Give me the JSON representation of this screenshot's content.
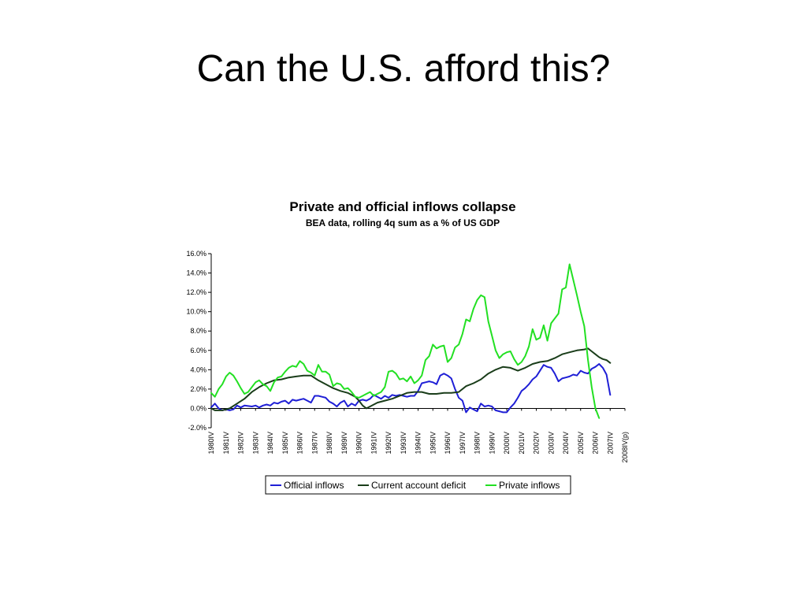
{
  "slide": {
    "title": "Can the U.S. afford this?"
  },
  "chart_data": {
    "type": "line",
    "title": "Private and official inflows collapse",
    "subtitle": "BEA data, rolling 4q sum as a % of US GDP",
    "xlabel": "",
    "ylabel": "",
    "ylim": [
      -2.0,
      16.0
    ],
    "yticks": [
      "-2.0%",
      "0.0%",
      "2.0%",
      "4.0%",
      "6.0%",
      "8.0%",
      "10.0%",
      "12.0%",
      "14.0%",
      "16.0%"
    ],
    "x_start": 1980.75,
    "x_end": 2008.75,
    "x_labels": [
      "1980IV",
      "1981IV",
      "1982IV",
      "1983IV",
      "1984IV",
      "1985IV",
      "1986IV",
      "1987IV",
      "1988IV",
      "1989IV",
      "1990IV",
      "1991IV",
      "1992IV",
      "1993IV",
      "1994IV",
      "1995IV",
      "1996IV",
      "1997IV",
      "1998IV",
      "1999IV",
      "2000IV",
      "2001IV",
      "2002IV",
      "2003IV",
      "2004IV",
      "2005IV",
      "2006IV",
      "2007IV",
      "2008IV(p)"
    ],
    "legend_position": "bottom",
    "grid": false,
    "series": [
      {
        "name": "Official inflows",
        "color": "#1f1fd6",
        "points": [
          [
            1980.75,
            0.1
          ],
          [
            1981.0,
            0.5
          ],
          [
            1981.25,
            0.0
          ],
          [
            1981.5,
            -0.2
          ],
          [
            1981.75,
            -0.1
          ],
          [
            1982.0,
            -0.2
          ],
          [
            1982.25,
            -0.1
          ],
          [
            1982.5,
            0.3
          ],
          [
            1982.75,
            0.1
          ],
          [
            1983.0,
            0.3
          ],
          [
            1983.5,
            0.2
          ],
          [
            1983.75,
            0.3
          ],
          [
            1984.0,
            0.1
          ],
          [
            1984.25,
            0.3
          ],
          [
            1984.5,
            0.4
          ],
          [
            1984.75,
            0.3
          ],
          [
            1985.0,
            0.6
          ],
          [
            1985.25,
            0.5
          ],
          [
            1985.5,
            0.7
          ],
          [
            1985.75,
            0.8
          ],
          [
            1986.0,
            0.5
          ],
          [
            1986.25,
            0.9
          ],
          [
            1986.5,
            0.8
          ],
          [
            1986.75,
            0.9
          ],
          [
            1987.0,
            1.0
          ],
          [
            1987.25,
            0.8
          ],
          [
            1987.5,
            0.6
          ],
          [
            1987.75,
            1.3
          ],
          [
            1988.0,
            1.3
          ],
          [
            1988.25,
            1.2
          ],
          [
            1988.5,
            1.1
          ],
          [
            1988.75,
            0.7
          ],
          [
            1989.0,
            0.5
          ],
          [
            1989.25,
            0.2
          ],
          [
            1989.5,
            0.6
          ],
          [
            1989.75,
            0.8
          ],
          [
            1990.0,
            0.2
          ],
          [
            1990.25,
            0.5
          ],
          [
            1990.5,
            0.3
          ],
          [
            1990.75,
            0.8
          ],
          [
            1991.0,
            0.9
          ],
          [
            1991.25,
            0.8
          ],
          [
            1991.5,
            1.0
          ],
          [
            1991.75,
            1.4
          ],
          [
            1992.0,
            1.2
          ],
          [
            1992.25,
            1.0
          ],
          [
            1992.5,
            1.3
          ],
          [
            1992.75,
            1.1
          ],
          [
            1993.0,
            1.4
          ],
          [
            1993.25,
            1.3
          ],
          [
            1993.5,
            1.4
          ],
          [
            1993.75,
            1.3
          ],
          [
            1994.0,
            1.2
          ],
          [
            1994.25,
            1.3
          ],
          [
            1994.5,
            1.3
          ],
          [
            1994.75,
            1.8
          ],
          [
            1995.0,
            2.6
          ],
          [
            1995.25,
            2.7
          ],
          [
            1995.5,
            2.8
          ],
          [
            1995.75,
            2.7
          ],
          [
            1996.0,
            2.5
          ],
          [
            1996.25,
            3.4
          ],
          [
            1996.5,
            3.6
          ],
          [
            1996.75,
            3.4
          ],
          [
            1997.0,
            3.1
          ],
          [
            1997.25,
            2.0
          ],
          [
            1997.5,
            1.1
          ],
          [
            1997.75,
            0.8
          ],
          [
            1998.0,
            -0.4
          ],
          [
            1998.25,
            0.1
          ],
          [
            1998.5,
            -0.1
          ],
          [
            1998.75,
            -0.3
          ],
          [
            1999.0,
            0.5
          ],
          [
            1999.25,
            0.2
          ],
          [
            1999.5,
            0.3
          ],
          [
            1999.75,
            0.2
          ],
          [
            2000.0,
            -0.2
          ],
          [
            2000.25,
            -0.3
          ],
          [
            2000.5,
            -0.4
          ],
          [
            2000.75,
            -0.4
          ],
          [
            2001.0,
            0.1
          ],
          [
            2001.25,
            0.5
          ],
          [
            2001.5,
            1.1
          ],
          [
            2001.75,
            1.8
          ],
          [
            2002.0,
            2.1
          ],
          [
            2002.25,
            2.5
          ],
          [
            2002.5,
            3.0
          ],
          [
            2002.75,
            3.3
          ],
          [
            2003.0,
            3.9
          ],
          [
            2003.25,
            4.5
          ],
          [
            2003.5,
            4.3
          ],
          [
            2003.75,
            4.2
          ],
          [
            2004.0,
            3.6
          ],
          [
            2004.25,
            2.8
          ],
          [
            2004.5,
            3.1
          ],
          [
            2004.75,
            3.2
          ],
          [
            2005.0,
            3.3
          ],
          [
            2005.25,
            3.5
          ],
          [
            2005.5,
            3.4
          ],
          [
            2005.75,
            3.9
          ],
          [
            2006.0,
            3.7
          ],
          [
            2006.25,
            3.6
          ],
          [
            2006.5,
            4.1
          ],
          [
            2006.75,
            4.3
          ],
          [
            2007.0,
            4.6
          ],
          [
            2007.25,
            4.2
          ],
          [
            2007.5,
            3.5
          ],
          [
            2007.75,
            1.4
          ]
        ]
      },
      {
        "name": "Current account deficit",
        "color": "#1a3d1a",
        "points": [
          [
            1980.75,
            0.0
          ],
          [
            1981.0,
            -0.2
          ],
          [
            1981.5,
            -0.2
          ],
          [
            1982.0,
            0.0
          ],
          [
            1982.5,
            0.5
          ],
          [
            1983.0,
            1.0
          ],
          [
            1983.5,
            1.7
          ],
          [
            1984.0,
            2.2
          ],
          [
            1984.5,
            2.6
          ],
          [
            1985.0,
            2.9
          ],
          [
            1985.5,
            3.0
          ],
          [
            1986.0,
            3.2
          ],
          [
            1986.5,
            3.3
          ],
          [
            1987.0,
            3.4
          ],
          [
            1987.5,
            3.4
          ],
          [
            1988.0,
            2.9
          ],
          [
            1988.5,
            2.5
          ],
          [
            1989.0,
            2.1
          ],
          [
            1989.5,
            1.8
          ],
          [
            1990.0,
            1.6
          ],
          [
            1990.25,
            1.4
          ],
          [
            1990.5,
            1.2
          ],
          [
            1990.75,
            0.8
          ],
          [
            1991.0,
            0.3
          ],
          [
            1991.25,
            0.0
          ],
          [
            1991.5,
            0.2
          ],
          [
            1992.0,
            0.6
          ],
          [
            1992.5,
            0.8
          ],
          [
            1993.0,
            1.0
          ],
          [
            1993.5,
            1.3
          ],
          [
            1994.0,
            1.6
          ],
          [
            1994.5,
            1.7
          ],
          [
            1995.0,
            1.7
          ],
          [
            1995.5,
            1.5
          ],
          [
            1996.0,
            1.5
          ],
          [
            1996.5,
            1.6
          ],
          [
            1997.0,
            1.6
          ],
          [
            1997.5,
            1.7
          ],
          [
            1998.0,
            2.3
          ],
          [
            1998.5,
            2.6
          ],
          [
            1999.0,
            3.0
          ],
          [
            1999.5,
            3.6
          ],
          [
            2000.0,
            4.0
          ],
          [
            2000.5,
            4.3
          ],
          [
            2001.0,
            4.2
          ],
          [
            2001.5,
            3.9
          ],
          [
            2002.0,
            4.2
          ],
          [
            2002.5,
            4.6
          ],
          [
            2003.0,
            4.8
          ],
          [
            2003.5,
            4.9
          ],
          [
            2004.0,
            5.2
          ],
          [
            2004.5,
            5.6
          ],
          [
            2005.0,
            5.8
          ],
          [
            2005.5,
            6.0
          ],
          [
            2006.0,
            6.1
          ],
          [
            2006.25,
            6.2
          ],
          [
            2006.5,
            5.9
          ],
          [
            2006.75,
            5.6
          ],
          [
            2007.0,
            5.3
          ],
          [
            2007.25,
            5.1
          ],
          [
            2007.5,
            5.0
          ],
          [
            2007.75,
            4.7
          ]
        ]
      },
      {
        "name": "Private inflows",
        "color": "#22e022",
        "points": [
          [
            1980.75,
            1.6
          ],
          [
            1981.0,
            1.2
          ],
          [
            1981.25,
            2.0
          ],
          [
            1981.5,
            2.5
          ],
          [
            1981.75,
            3.3
          ],
          [
            1982.0,
            3.7
          ],
          [
            1982.25,
            3.4
          ],
          [
            1982.5,
            2.8
          ],
          [
            1982.75,
            2.1
          ],
          [
            1983.0,
            1.5
          ],
          [
            1983.25,
            1.7
          ],
          [
            1983.5,
            2.2
          ],
          [
            1983.75,
            2.7
          ],
          [
            1984.0,
            2.9
          ],
          [
            1984.25,
            2.5
          ],
          [
            1984.5,
            2.3
          ],
          [
            1984.75,
            1.8
          ],
          [
            1985.0,
            2.7
          ],
          [
            1985.25,
            3.2
          ],
          [
            1985.5,
            3.3
          ],
          [
            1985.75,
            3.8
          ],
          [
            1986.0,
            4.2
          ],
          [
            1986.25,
            4.4
          ],
          [
            1986.5,
            4.3
          ],
          [
            1986.75,
            4.9
          ],
          [
            1987.0,
            4.6
          ],
          [
            1987.25,
            3.9
          ],
          [
            1987.5,
            3.7
          ],
          [
            1987.75,
            3.4
          ],
          [
            1988.0,
            4.5
          ],
          [
            1988.25,
            3.8
          ],
          [
            1988.5,
            3.8
          ],
          [
            1988.75,
            3.5
          ],
          [
            1989.0,
            2.3
          ],
          [
            1989.25,
            2.6
          ],
          [
            1989.5,
            2.5
          ],
          [
            1989.75,
            2.0
          ],
          [
            1990.0,
            2.1
          ],
          [
            1990.25,
            1.7
          ],
          [
            1990.5,
            1.2
          ],
          [
            1990.75,
            1.1
          ],
          [
            1991.0,
            1.3
          ],
          [
            1991.25,
            1.5
          ],
          [
            1991.5,
            1.7
          ],
          [
            1991.75,
            1.3
          ],
          [
            1992.0,
            1.5
          ],
          [
            1992.25,
            1.7
          ],
          [
            1992.5,
            2.2
          ],
          [
            1992.75,
            3.8
          ],
          [
            1993.0,
            3.9
          ],
          [
            1993.25,
            3.6
          ],
          [
            1993.5,
            3.0
          ],
          [
            1993.75,
            3.1
          ],
          [
            1994.0,
            2.8
          ],
          [
            1994.25,
            3.3
          ],
          [
            1994.5,
            2.6
          ],
          [
            1994.75,
            2.9
          ],
          [
            1995.0,
            3.4
          ],
          [
            1995.25,
            5.0
          ],
          [
            1995.5,
            5.4
          ],
          [
            1995.75,
            6.6
          ],
          [
            1996.0,
            6.2
          ],
          [
            1996.25,
            6.4
          ],
          [
            1996.5,
            6.5
          ],
          [
            1996.75,
            4.8
          ],
          [
            1997.0,
            5.2
          ],
          [
            1997.25,
            6.3
          ],
          [
            1997.5,
            6.6
          ],
          [
            1997.75,
            7.7
          ],
          [
            1998.0,
            9.2
          ],
          [
            1998.25,
            9.0
          ],
          [
            1998.5,
            10.3
          ],
          [
            1998.75,
            11.2
          ],
          [
            1999.0,
            11.7
          ],
          [
            1999.25,
            11.5
          ],
          [
            1999.5,
            9.0
          ],
          [
            1999.75,
            7.5
          ],
          [
            2000.0,
            6.0
          ],
          [
            2000.25,
            5.2
          ],
          [
            2000.5,
            5.6
          ],
          [
            2000.75,
            5.8
          ],
          [
            2001.0,
            5.9
          ],
          [
            2001.25,
            5.1
          ],
          [
            2001.5,
            4.5
          ],
          [
            2001.75,
            4.8
          ],
          [
            2002.0,
            5.4
          ],
          [
            2002.25,
            6.4
          ],
          [
            2002.5,
            8.2
          ],
          [
            2002.75,
            7.1
          ],
          [
            2003.0,
            7.3
          ],
          [
            2003.25,
            8.6
          ],
          [
            2003.5,
            7.0
          ],
          [
            2003.75,
            8.8
          ],
          [
            2004.0,
            9.3
          ],
          [
            2004.25,
            9.8
          ],
          [
            2004.5,
            12.3
          ],
          [
            2004.75,
            12.5
          ],
          [
            2005.0,
            14.9
          ],
          [
            2005.25,
            13.3
          ],
          [
            2005.5,
            11.7
          ],
          [
            2005.75,
            10.0
          ],
          [
            2006.0,
            8.5
          ],
          [
            2006.25,
            5.0
          ],
          [
            2006.5,
            2.2
          ],
          [
            2006.75,
            0.0
          ],
          [
            2007.0,
            -1.0
          ]
        ]
      }
    ]
  }
}
